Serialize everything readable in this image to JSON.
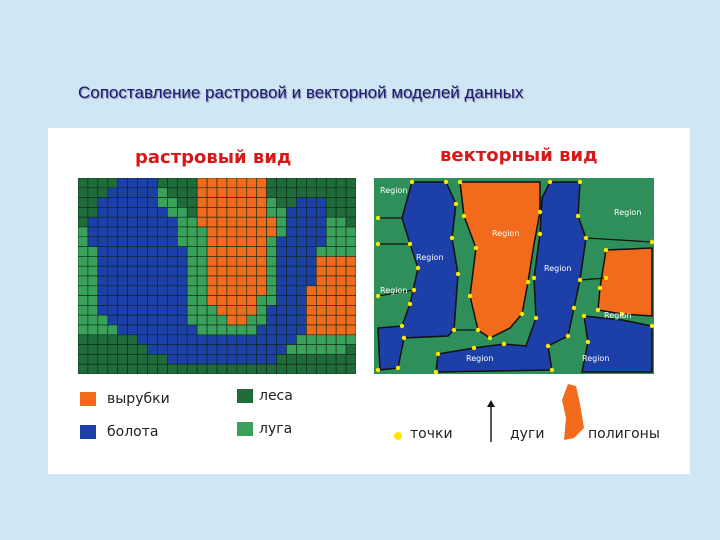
{
  "slide": {
    "title": "Сопоставление растровой и векторной моделей данных"
  },
  "raster": {
    "heading": "растровый вид"
  },
  "vector": {
    "heading": "векторный вид",
    "region_label": "Region"
  },
  "legend": {
    "cutting": {
      "label": "вырубки",
      "color": "#f26a1b"
    },
    "forest": {
      "label": "леса",
      "color": "#1f6b3a"
    },
    "swamp": {
      "label": "болота",
      "color": "#1d3fa8"
    },
    "meadow": {
      "label": "луга",
      "color": "#3aa15a"
    }
  },
  "elements": {
    "points": "точки",
    "arcs": "дуги",
    "polygons": "полигоны"
  },
  "colors": {
    "outline": "#111111",
    "vertex": "#ffe600",
    "forest_vector": "#2f8f5a"
  }
}
